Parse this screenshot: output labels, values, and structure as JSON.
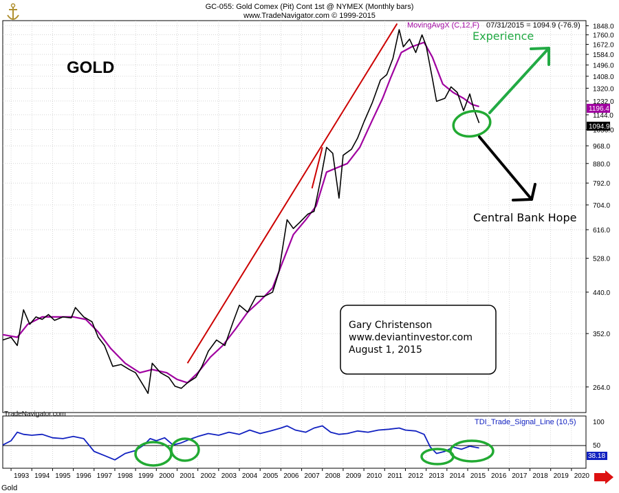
{
  "header": {
    "line1": "GC-055:  Gold Comex (Pit) Cont 1st @ NYMEX  (Monthly bars)",
    "line2": "www.TradeNavigator.com © 1999-2015",
    "ma_label": "MovingAvgX (C,12,F)",
    "ma_date_value": "07/31/2015 = 1094.9 (-76.9)"
  },
  "footer": {
    "source": "TradeNavigator.com",
    "symbol": "Gold"
  },
  "colors": {
    "price": "#000000",
    "moving_average": "#a000a0",
    "trendline": "#cc0000",
    "indicator": "#1020c0",
    "circle": "#22aa33",
    "up_arrow": "#22aa44",
    "down_arrow": "#000000"
  },
  "annotations": {
    "title": "GOLD",
    "experience": "Experience",
    "central_bank": "Central Bank Hope",
    "author_box": [
      "Gary Christenson",
      "www.deviantinvestor.com",
      "August 1, 2015"
    ]
  },
  "indicator": {
    "label": "TDI_Trade_Signal_Line (10,5)",
    "axis_ticks": [
      "100",
      "50"
    ],
    "last_value": "38.18"
  },
  "price_badges": {
    "ma_value": "1196.4",
    "close_value": "1094.9"
  },
  "chart_data": {
    "type": "line",
    "price_ticks": [
      264.0,
      352.0,
      440.0,
      528.0,
      616.0,
      704.0,
      792.0,
      880.0,
      968.0,
      1056.0,
      1144.0,
      1232.0,
      1320.0,
      1408.0,
      1496.0,
      1584.0,
      1672.0,
      1760.0,
      1848.0
    ],
    "price_tick_labels": [
      "264.0",
      "352.0",
      "440.0",
      "528.0",
      "616.0",
      "704.0",
      "792.0",
      "880.0",
      "968.0",
      "1056.0",
      "1144.0",
      "1232.0",
      "1320.0",
      "1408.0",
      "1496.0",
      "1584.0",
      "1672.0",
      "1760.0",
      "1848.0"
    ],
    "years": [
      1993,
      1994,
      1995,
      1996,
      1997,
      1998,
      1999,
      2000,
      2001,
      2002,
      2003,
      2004,
      2005,
      2006,
      2007,
      2008,
      2009,
      2010,
      2011,
      2012,
      2013,
      2014,
      2015,
      2016,
      2017,
      2018,
      2019,
      2020
    ],
    "series": [
      {
        "values": [
          [
            1992.6,
            340
          ],
          [
            1993.0,
            345
          ],
          [
            1993.3,
            330
          ],
          [
            1993.6,
            400
          ],
          [
            1993.9,
            370
          ],
          [
            1994.2,
            385
          ],
          [
            1994.5,
            380
          ],
          [
            1994.8,
            390
          ],
          [
            1995.1,
            378
          ],
          [
            1995.5,
            385
          ],
          [
            1995.9,
            383
          ],
          [
            1996.1,
            405
          ],
          [
            1996.5,
            385
          ],
          [
            1996.9,
            375
          ],
          [
            1997.2,
            345
          ],
          [
            1997.5,
            330
          ],
          [
            1997.9,
            295
          ],
          [
            1998.3,
            298
          ],
          [
            1998.7,
            290
          ],
          [
            1999.0,
            285
          ],
          [
            1999.4,
            265
          ],
          [
            1999.6,
            255
          ],
          [
            1999.8,
            300
          ],
          [
            2000.2,
            285
          ],
          [
            2000.6,
            278
          ],
          [
            2000.9,
            265
          ],
          [
            2001.2,
            262
          ],
          [
            2001.5,
            270
          ],
          [
            2001.9,
            278
          ],
          [
            2002.2,
            295
          ],
          [
            2002.5,
            320
          ],
          [
            2002.9,
            340
          ],
          [
            2003.3,
            330
          ],
          [
            2003.7,
            375
          ],
          [
            2004.0,
            410
          ],
          [
            2004.4,
            395
          ],
          [
            2004.8,
            430
          ],
          [
            2005.2,
            430
          ],
          [
            2005.6,
            440
          ],
          [
            2005.9,
            490
          ],
          [
            2006.3,
            650
          ],
          [
            2006.6,
            620
          ],
          [
            2006.9,
            640
          ],
          [
            2007.3,
            670
          ],
          [
            2007.6,
            680
          ],
          [
            2007.9,
            800
          ],
          [
            2008.2,
            960
          ],
          [
            2008.5,
            930
          ],
          [
            2008.8,
            730
          ],
          [
            2009.0,
            920
          ],
          [
            2009.4,
            950
          ],
          [
            2009.7,
            1010
          ],
          [
            2010.0,
            1100
          ],
          [
            2010.4,
            1220
          ],
          [
            2010.8,
            1380
          ],
          [
            2011.1,
            1420
          ],
          [
            2011.4,
            1550
          ],
          [
            2011.7,
            1810
          ],
          [
            2011.9,
            1650
          ],
          [
            2012.2,
            1720
          ],
          [
            2012.5,
            1600
          ],
          [
            2012.8,
            1760
          ],
          [
            2013.0,
            1660
          ],
          [
            2013.3,
            1390
          ],
          [
            2013.5,
            1230
          ],
          [
            2013.9,
            1250
          ],
          [
            2014.2,
            1330
          ],
          [
            2014.5,
            1290
          ],
          [
            2014.8,
            1170
          ],
          [
            2015.1,
            1280
          ],
          [
            2015.3,
            1180
          ],
          [
            2015.55,
            1094.9
          ]
        ]
      },
      {
        "name": "MovingAvgX (C,12,F)",
        "values": [
          [
            1992.6,
            350
          ],
          [
            1993.3,
            345
          ],
          [
            1993.8,
            370
          ],
          [
            1994.5,
            385
          ],
          [
            1995.2,
            385
          ],
          [
            1996.0,
            385
          ],
          [
            1996.6,
            380
          ],
          [
            1997.2,
            355
          ],
          [
            1997.8,
            325
          ],
          [
            1998.5,
            300
          ],
          [
            1999.2,
            285
          ],
          [
            1999.8,
            290
          ],
          [
            2000.5,
            285
          ],
          [
            2001.0,
            275
          ],
          [
            2001.5,
            270
          ],
          [
            2002.0,
            285
          ],
          [
            2002.6,
            310
          ],
          [
            2003.2,
            330
          ],
          [
            2003.8,
            360
          ],
          [
            2004.4,
            395
          ],
          [
            2005.0,
            420
          ],
          [
            2005.6,
            450
          ],
          [
            2006.1,
            520
          ],
          [
            2006.6,
            600
          ],
          [
            2007.2,
            650
          ],
          [
            2007.7,
            700
          ],
          [
            2008.2,
            840
          ],
          [
            2008.7,
            860
          ],
          [
            2009.2,
            880
          ],
          [
            2009.8,
            960
          ],
          [
            2010.4,
            1110
          ],
          [
            2010.9,
            1250
          ],
          [
            2011.3,
            1400
          ],
          [
            2011.8,
            1600
          ],
          [
            2012.3,
            1650
          ],
          [
            2012.9,
            1690
          ],
          [
            2013.3,
            1560
          ],
          [
            2013.8,
            1350
          ],
          [
            2014.3,
            1290
          ],
          [
            2014.8,
            1250
          ],
          [
            2015.2,
            1210
          ],
          [
            2015.55,
            1196.4
          ]
        ]
      }
    ],
    "trendlines": [
      {
        "values": [
          [
            2001.5,
            300
          ],
          [
            2011.6,
            1870
          ]
        ]
      },
      {
        "values": [
          [
            2007.5,
            770
          ],
          [
            2008.0,
            960
          ]
        ]
      }
    ],
    "indicator_values": [
      [
        1992.6,
        45
      ],
      [
        1993.0,
        55
      ],
      [
        1993.3,
        75
      ],
      [
        1993.6,
        70
      ],
      [
        1994.0,
        68
      ],
      [
        1994.5,
        70
      ],
      [
        1995.0,
        62
      ],
      [
        1995.5,
        60
      ],
      [
        1996.0,
        65
      ],
      [
        1996.5,
        60
      ],
      [
        1997.0,
        30
      ],
      [
        1997.5,
        20
      ],
      [
        1998.0,
        10
      ],
      [
        1998.5,
        25
      ],
      [
        1999.0,
        32
      ],
      [
        1999.4,
        45
      ],
      [
        1999.7,
        60
      ],
      [
        2000.0,
        55
      ],
      [
        2000.4,
        62
      ],
      [
        2000.8,
        45
      ],
      [
        2001.2,
        50
      ],
      [
        2001.6,
        58
      ],
      [
        2002.0,
        65
      ],
      [
        2002.5,
        72
      ],
      [
        2003.0,
        68
      ],
      [
        2003.5,
        75
      ],
      [
        2004.0,
        70
      ],
      [
        2004.5,
        80
      ],
      [
        2005.0,
        72
      ],
      [
        2005.5,
        78
      ],
      [
        2006.0,
        85
      ],
      [
        2006.3,
        90
      ],
      [
        2006.7,
        80
      ],
      [
        2007.2,
        75
      ],
      [
        2007.6,
        85
      ],
      [
        2008.0,
        90
      ],
      [
        2008.4,
        75
      ],
      [
        2008.8,
        70
      ],
      [
        2009.2,
        72
      ],
      [
        2009.7,
        78
      ],
      [
        2010.2,
        75
      ],
      [
        2010.7,
        80
      ],
      [
        2011.2,
        82
      ],
      [
        2011.7,
        85
      ],
      [
        2012.0,
        80
      ],
      [
        2012.5,
        78
      ],
      [
        2012.9,
        70
      ],
      [
        2013.2,
        40
      ],
      [
        2013.5,
        25
      ],
      [
        2013.9,
        30
      ],
      [
        2014.3,
        40
      ],
      [
        2014.7,
        35
      ],
      [
        2015.1,
        42
      ],
      [
        2015.55,
        38
      ]
    ],
    "indicator_levels": [
      100,
      50
    ],
    "x_range": [
      1992.6,
      2020.7
    ],
    "y_range": [
      230,
      1900
    ],
    "y_scale": "log"
  }
}
